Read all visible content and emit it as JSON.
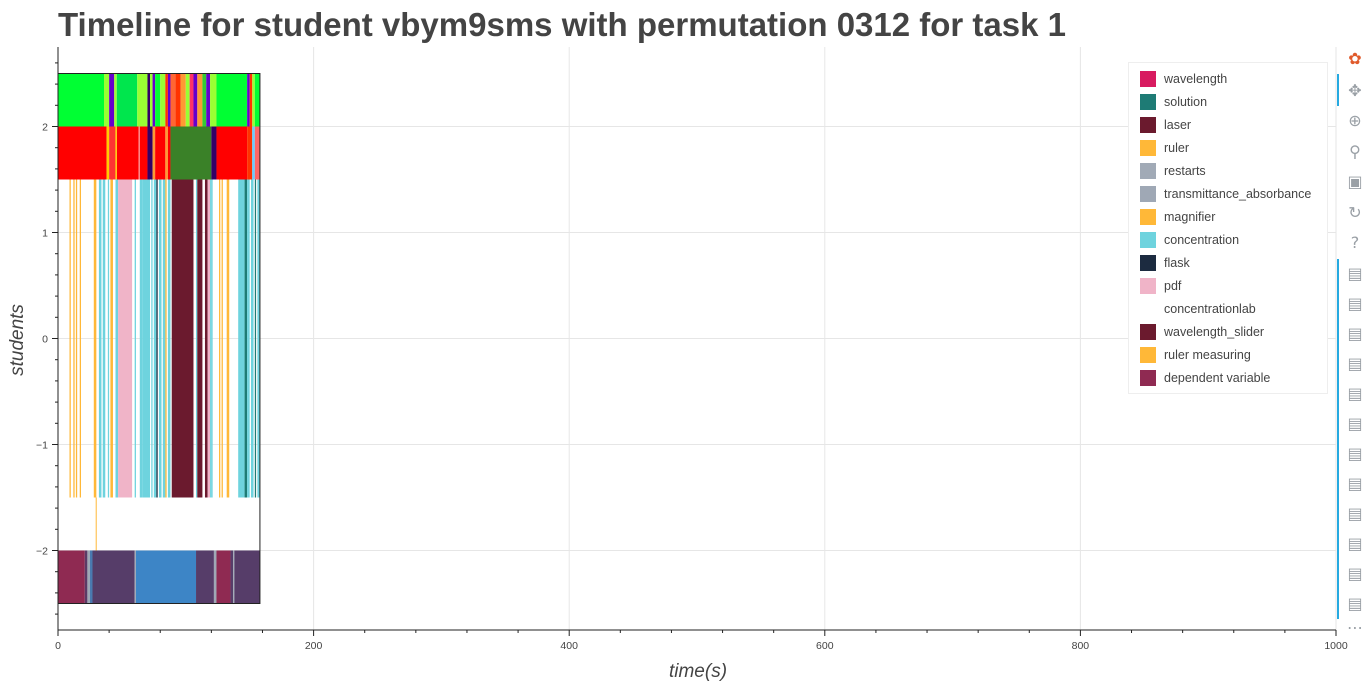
{
  "page": {
    "title": "Timeline for student vbym9sms with permutation 0312 for task 1"
  },
  "chart_data": {
    "type": "timeline",
    "title": "Timeline for student vbym9sms with permutation 0312 for task 1",
    "xlabel": "time(s)",
    "ylabel": "students",
    "xlim": [
      0,
      1000
    ],
    "ylim": [
      -2.75,
      2.75
    ],
    "x_ticks": [
      0,
      200,
      400,
      600,
      800,
      1000
    ],
    "y_ticks": [
      -2,
      -1,
      0,
      1,
      2
    ],
    "grid": true,
    "legend_position": "top-right",
    "legend": [
      {
        "label": "wavelength",
        "color": "#d81b60"
      },
      {
        "label": "solution",
        "color": "#1e7b75"
      },
      {
        "label": "laser",
        "color": "#6b1a2e"
      },
      {
        "label": "ruler",
        "color": "#ffb838"
      },
      {
        "label": "restarts",
        "color": "#a1aab6"
      },
      {
        "label": "transmittance_absorbance",
        "color": "#9fa8b5"
      },
      {
        "label": "magnifier",
        "color": "#ffb838"
      },
      {
        "label": "concentration",
        "color": "#6ed3de"
      },
      {
        "label": "flask",
        "color": "#1c2b40"
      },
      {
        "label": "pdf",
        "color": "#f0b4c8"
      },
      {
        "label": "concentrationlab",
        "color": "#ffffff"
      },
      {
        "label": "wavelength_slider",
        "color": "#6b1a2e"
      },
      {
        "label": "ruler measuring",
        "color": "#ffb838"
      },
      {
        "label": "dependent variable",
        "color": "#8f2a52"
      }
    ],
    "rows": [
      {
        "y": [
          2.0,
          2.5
        ],
        "segments": [
          {
            "start": 0,
            "end": 36,
            "color": "#00ff33"
          },
          {
            "start": 36,
            "end": 40,
            "color": "#99ff33"
          },
          {
            "start": 40,
            "end": 44,
            "color": "#6600cc"
          },
          {
            "start": 44,
            "end": 46,
            "color": "#99ff33"
          },
          {
            "start": 46,
            "end": 62,
            "color": "#00e64d"
          },
          {
            "start": 62,
            "end": 70,
            "color": "#99ff33"
          },
          {
            "start": 70,
            "end": 72,
            "color": "#330066"
          },
          {
            "start": 72,
            "end": 74,
            "color": "#99ff33"
          },
          {
            "start": 74,
            "end": 76,
            "color": "#6600cc"
          },
          {
            "start": 76,
            "end": 80,
            "color": "#00ff33"
          },
          {
            "start": 80,
            "end": 84,
            "color": "#99ff33"
          },
          {
            "start": 84,
            "end": 86,
            "color": "#ff3300"
          },
          {
            "start": 86,
            "end": 88,
            "color": "#6600cc"
          },
          {
            "start": 88,
            "end": 92,
            "color": "#ff6633"
          },
          {
            "start": 92,
            "end": 96,
            "color": "#ff3300"
          },
          {
            "start": 96,
            "end": 100,
            "color": "#ff9933"
          },
          {
            "start": 100,
            "end": 103,
            "color": "#99ff33"
          },
          {
            "start": 103,
            "end": 106,
            "color": "#ff3366"
          },
          {
            "start": 106,
            "end": 109,
            "color": "#6600cc"
          },
          {
            "start": 109,
            "end": 113,
            "color": "#ff9933"
          },
          {
            "start": 113,
            "end": 116,
            "color": "#33cc33"
          },
          {
            "start": 116,
            "end": 119,
            "color": "#6600cc"
          },
          {
            "start": 119,
            "end": 124,
            "color": "#99ff33"
          },
          {
            "start": 124,
            "end": 148,
            "color": "#00ff33"
          },
          {
            "start": 148,
            "end": 150,
            "color": "#6600cc"
          },
          {
            "start": 150,
            "end": 152,
            "color": "#ff3300"
          },
          {
            "start": 152,
            "end": 154,
            "color": "#99ff33"
          },
          {
            "start": 154,
            "end": 158,
            "color": "#00ff33"
          }
        ]
      },
      {
        "y": [
          1.5,
          2.0
        ],
        "segments": [
          {
            "start": 0,
            "end": 38,
            "color": "#ff0000"
          },
          {
            "start": 38,
            "end": 40,
            "color": "#ffcc00"
          },
          {
            "start": 40,
            "end": 45,
            "color": "#ff3333"
          },
          {
            "start": 45,
            "end": 46,
            "color": "#ffff00"
          },
          {
            "start": 46,
            "end": 63,
            "color": "#ff0000"
          },
          {
            "start": 63,
            "end": 64,
            "color": "#ff9999"
          },
          {
            "start": 64,
            "end": 70,
            "color": "#ff0000"
          },
          {
            "start": 70,
            "end": 74,
            "color": "#330066"
          },
          {
            "start": 74,
            "end": 76,
            "color": "#ff9933"
          },
          {
            "start": 76,
            "end": 84,
            "color": "#ff0000"
          },
          {
            "start": 84,
            "end": 86,
            "color": "#ff9933"
          },
          {
            "start": 86,
            "end": 88,
            "color": "#ff0000"
          },
          {
            "start": 88,
            "end": 120,
            "color": "#3a8128"
          },
          {
            "start": 120,
            "end": 124,
            "color": "#330066"
          },
          {
            "start": 124,
            "end": 148,
            "color": "#ff0000"
          },
          {
            "start": 148,
            "end": 152,
            "color": "#ff3300"
          },
          {
            "start": 152,
            "end": 154,
            "color": "#66ccff"
          },
          {
            "start": 154,
            "end": 158,
            "color": "#ff6666"
          }
        ]
      },
      {
        "y": [
          -1.5,
          1.5
        ],
        "segments": [
          {
            "start": 9,
            "end": 10,
            "color": "#ffb838"
          },
          {
            "start": 12,
            "end": 13,
            "color": "#ffb838"
          },
          {
            "start": 14,
            "end": 15,
            "color": "#ffb838"
          },
          {
            "start": 17,
            "end": 18,
            "color": "#ffb838"
          },
          {
            "start": 28,
            "end": 30,
            "color": "#ffb838"
          },
          {
            "start": 32,
            "end": 34,
            "color": "#6ed3de"
          },
          {
            "start": 35,
            "end": 37,
            "color": "#6ed3de"
          },
          {
            "start": 39,
            "end": 40,
            "color": "#6ed3de"
          },
          {
            "start": 41,
            "end": 43,
            "color": "#ffb838"
          },
          {
            "start": 45,
            "end": 47,
            "color": "#6ed3de"
          },
          {
            "start": 47,
            "end": 58,
            "color": "#f0b4c8"
          },
          {
            "start": 60,
            "end": 61,
            "color": "#6ed3de"
          },
          {
            "start": 64,
            "end": 66,
            "color": "#6ed3de"
          },
          {
            "start": 66,
            "end": 72,
            "color": "#6ed3de"
          },
          {
            "start": 73,
            "end": 74,
            "color": "#6ed3de"
          },
          {
            "start": 75,
            "end": 77,
            "color": "#6ed3de"
          },
          {
            "start": 77,
            "end": 78,
            "color": "#1c2b40"
          },
          {
            "start": 79,
            "end": 81,
            "color": "#6ed3de"
          },
          {
            "start": 82,
            "end": 84,
            "color": "#6ed3de"
          },
          {
            "start": 84,
            "end": 85,
            "color": "#ffb838"
          },
          {
            "start": 86,
            "end": 88,
            "color": "#6ed3de"
          },
          {
            "start": 89,
            "end": 106,
            "color": "#6b1a2e"
          },
          {
            "start": 108,
            "end": 109,
            "color": "#6ed3de"
          },
          {
            "start": 109,
            "end": 113,
            "color": "#6b1a2e"
          },
          {
            "start": 115,
            "end": 117,
            "color": "#6b1a2e"
          },
          {
            "start": 117,
            "end": 119,
            "color": "#f0b4c8"
          },
          {
            "start": 119,
            "end": 120,
            "color": "#6ed3de"
          },
          {
            "start": 120,
            "end": 121,
            "color": "#6ed3de"
          },
          {
            "start": 126,
            "end": 127,
            "color": "#ffb838"
          },
          {
            "start": 128,
            "end": 129,
            "color": "#ffb838"
          },
          {
            "start": 132,
            "end": 134,
            "color": "#ffb838"
          },
          {
            "start": 141,
            "end": 146,
            "color": "#6ed3de"
          },
          {
            "start": 146,
            "end": 148,
            "color": "#1e7b75"
          },
          {
            "start": 148,
            "end": 150,
            "color": "#6ed3de"
          },
          {
            "start": 151,
            "end": 153,
            "color": "#6ed3de"
          },
          {
            "start": 154,
            "end": 155,
            "color": "#1e7b75"
          },
          {
            "start": 156,
            "end": 158,
            "color": "#6ed3de"
          }
        ]
      },
      {
        "y": [
          -2.5,
          -2.0
        ],
        "segments": [
          {
            "start": 0,
            "end": 21,
            "color": "#8f2a52"
          },
          {
            "start": 21,
            "end": 23,
            "color": "#5b3a66"
          },
          {
            "start": 23,
            "end": 25,
            "color": "#9fa8b5"
          },
          {
            "start": 25,
            "end": 27,
            "color": "#4a7ab0"
          },
          {
            "start": 27,
            "end": 60,
            "color": "#563d69"
          },
          {
            "start": 60,
            "end": 61,
            "color": "#a1aab6"
          },
          {
            "start": 61,
            "end": 108,
            "color": "#3d85c6"
          },
          {
            "start": 108,
            "end": 122,
            "color": "#563d69"
          },
          {
            "start": 122,
            "end": 124,
            "color": "#9fa8b5"
          },
          {
            "start": 124,
            "end": 135,
            "color": "#8f2a52"
          },
          {
            "start": 135,
            "end": 137,
            "color": "#563d69"
          },
          {
            "start": 137,
            "end": 138,
            "color": "#9fa8b5"
          },
          {
            "start": 138,
            "end": 158,
            "color": "#563d69"
          }
        ]
      }
    ],
    "extra_marks": [
      {
        "x": 29.5,
        "y": [
          -2.0,
          -1.5
        ],
        "color": "#ffb838"
      }
    ],
    "outline": {
      "x": [
        0,
        158
      ],
      "y": [
        -2.5,
        2.5
      ]
    }
  },
  "toolbar": {
    "tools": [
      {
        "name": "bokeh-logo-icon",
        "glyph": "✿",
        "color": "#e05a2b"
      },
      {
        "name": "pan-tool-icon",
        "glyph": "✥",
        "color": "#9aa0a6"
      },
      {
        "name": "box-zoom-tool-icon",
        "glyph": "⊕",
        "color": "#9aa0a6"
      },
      {
        "name": "wheel-zoom-tool-icon",
        "glyph": "⚲",
        "color": "#9aa0a6"
      },
      {
        "name": "save-tool-icon",
        "glyph": "▣",
        "color": "#9aa0a6"
      },
      {
        "name": "reset-tool-icon",
        "glyph": "↻",
        "color": "#9aa0a6"
      },
      {
        "name": "help-tool-icon",
        "glyph": "?",
        "color": "#9aa0a6"
      },
      {
        "name": "hover-tool-icon",
        "glyph": "▤",
        "color": "#9aa0a6"
      },
      {
        "name": "hover-tool-icon",
        "glyph": "▤",
        "color": "#9aa0a6"
      },
      {
        "name": "hover-tool-icon",
        "glyph": "▤",
        "color": "#9aa0a6"
      },
      {
        "name": "hover-tool-icon",
        "glyph": "▤",
        "color": "#9aa0a6"
      },
      {
        "name": "hover-tool-icon",
        "glyph": "▤",
        "color": "#9aa0a6"
      },
      {
        "name": "hover-tool-icon",
        "glyph": "▤",
        "color": "#9aa0a6"
      },
      {
        "name": "hover-tool-icon",
        "glyph": "▤",
        "color": "#9aa0a6"
      },
      {
        "name": "hover-tool-icon",
        "glyph": "▤",
        "color": "#9aa0a6"
      },
      {
        "name": "hover-tool-icon",
        "glyph": "▤",
        "color": "#9aa0a6"
      },
      {
        "name": "hover-tool-icon",
        "glyph": "▤",
        "color": "#9aa0a6"
      },
      {
        "name": "hover-tool-icon",
        "glyph": "▤",
        "color": "#9aa0a6"
      },
      {
        "name": "hover-tool-icon",
        "glyph": "▤",
        "color": "#9aa0a6"
      },
      {
        "name": "more-tools-icon",
        "glyph": "⋯",
        "color": "#9aa0a6"
      }
    ]
  }
}
